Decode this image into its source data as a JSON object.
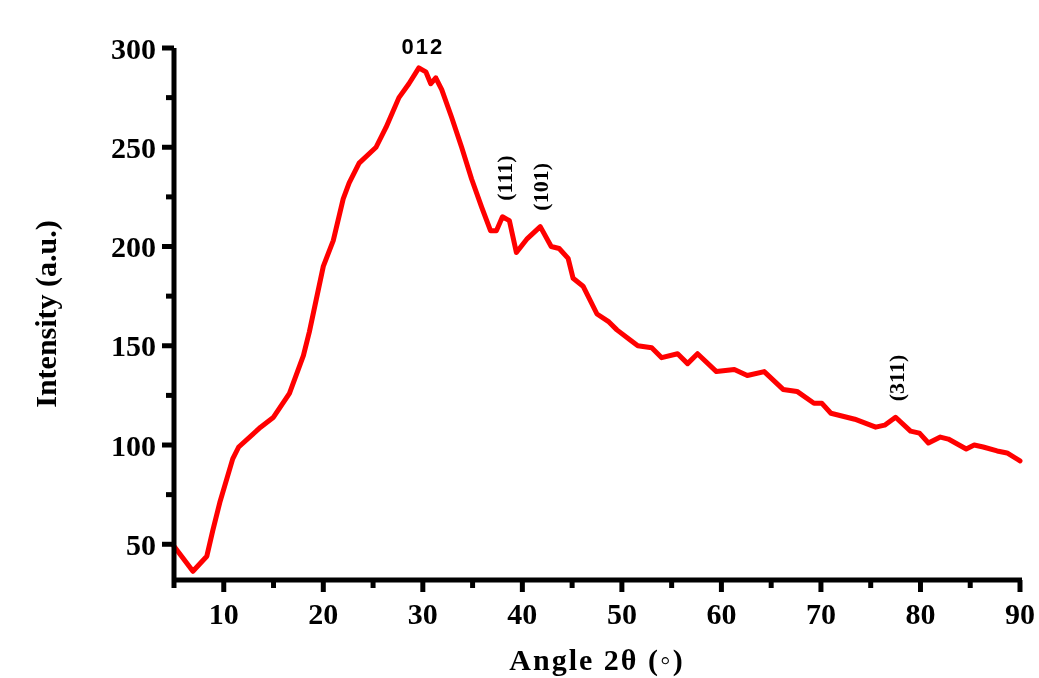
{
  "chart_data": {
    "type": "line",
    "xlabel": "Angle 2θ (◦)",
    "ylabel": "Intensity (a.u.)",
    "xlim": [
      5,
      90
    ],
    "xticks": [
      {
        "value": 5,
        "label": null
      },
      10,
      {
        "value": 15,
        "label": null
      },
      20,
      {
        "value": 25,
        "label": null
      },
      30,
      {
        "value": 35,
        "label": null
      },
      40,
      {
        "value": 45,
        "label": null
      },
      50,
      {
        "value": 55,
        "label": null
      },
      60,
      {
        "value": 65,
        "label": null
      },
      70,
      {
        "value": 75,
        "label": null
      },
      80,
      {
        "value": 85,
        "label": null
      },
      90
    ],
    "ylim": [
      32,
      300
    ],
    "yticks": [
      50,
      {
        "value": 75,
        "label": null
      },
      100,
      {
        "value": 125,
        "label": null
      },
      150,
      {
        "value": 175,
        "label": null
      },
      200,
      {
        "value": 225,
        "label": null
      },
      250,
      {
        "value": 275,
        "label": null
      },
      300
    ],
    "grid": false,
    "marker": "none",
    "line_style": "solid",
    "annotations": [
      {
        "text": "012",
        "x": 30,
        "y": 290
      },
      {
        "text": "(111)",
        "x": 38.2,
        "y": 215
      },
      {
        "text": "(101)",
        "x": 41.8,
        "y": 210
      },
      {
        "text": "(311)",
        "x": 77.5,
        "y": 114
      }
    ],
    "series": [
      {
        "color": "#ff0000",
        "x": [
          5,
          6.9,
          8.3,
          8.9,
          9.6,
          10.9,
          11.5,
          13.7,
          15,
          16.6,
          18,
          18.6,
          20,
          21,
          22,
          22.6,
          23.6,
          25.3,
          26.3,
          27.6,
          28.6,
          29.6,
          30.3,
          30.8,
          31.3,
          31.9,
          32.9,
          33.9,
          34.9,
          35.9,
          36.8,
          37.4,
          38,
          38.7,
          39.4,
          40.5,
          41.8,
          42.9,
          43.7,
          44.6,
          45.1,
          46.1,
          47.5,
          48.7,
          49.5,
          50.8,
          51.6,
          53,
          54,
          55.6,
          56.6,
          57.6,
          59.5,
          61.3,
          62.6,
          64.3,
          66.2,
          67.6,
          69.3,
          70.1,
          71,
          73.4,
          75.5,
          76.4,
          77.5,
          79,
          79.9,
          80.8,
          82,
          82.8,
          84.6,
          85.4,
          86.3,
          87.7,
          88.7,
          90
        ],
        "values": [
          49,
          36.4,
          44,
          57,
          71,
          93,
          99,
          109,
          114,
          126,
          145,
          157,
          190,
          203,
          224,
          232,
          242,
          250,
          260,
          275,
          282,
          290,
          288,
          282,
          285,
          279,
          265,
          250,
          234,
          220,
          208,
          208,
          215,
          213,
          197,
          204,
          210,
          200,
          199,
          194,
          184,
          180,
          166,
          162,
          158,
          153,
          150,
          149,
          144,
          146,
          141,
          146,
          137,
          138,
          135,
          137,
          128,
          127,
          121,
          121,
          116,
          113,
          109,
          110,
          114,
          107,
          106,
          101,
          104,
          103,
          98,
          100,
          99,
          97,
          96,
          92
        ]
      }
    ]
  }
}
